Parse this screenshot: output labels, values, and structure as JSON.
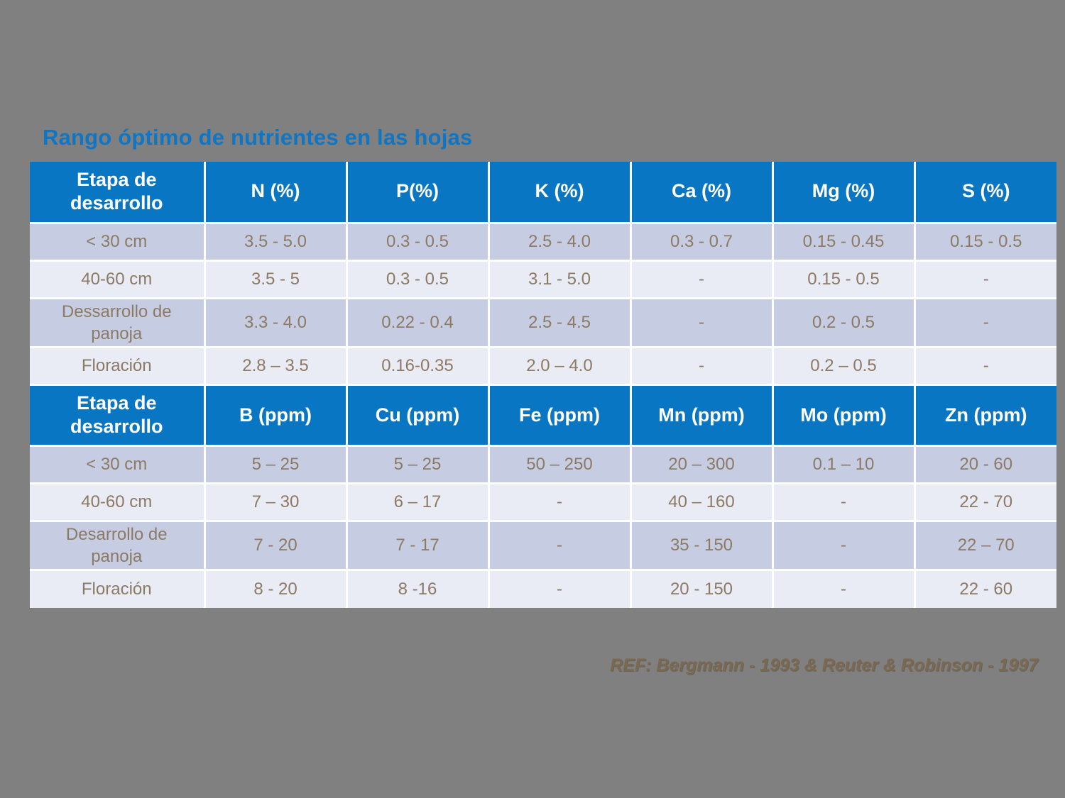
{
  "page": {
    "title": "Rango óptimo de nutrientes en las hojas",
    "reference": "REF:  Bergmann - 1993 & Reuter & Robinson - 1997",
    "colors": {
      "background": "#808080",
      "header_blue": "#0876C2",
      "row_dark": "#C6CDE2",
      "row_light": "#E9EBF5",
      "cell_text": "#8C7A64",
      "title_blue": "#0E76C4",
      "reference_text": "#7A6850"
    }
  },
  "tables": [
    {
      "name": "macronutrients-percent",
      "header": [
        "Etapa de\ndesarrollo",
        "N (%)",
        "P(%)",
        "K (%)",
        "Ca (%)",
        "Mg (%)",
        "S (%)"
      ],
      "rows": [
        {
          "label": "< 30 cm",
          "values": [
            "3.5 - 5.0",
            "0.3 - 0.5",
            "2.5 - 4.0",
            "0.3 - 0.7",
            "0.15 - 0.45",
            "0.15 - 0.5"
          ]
        },
        {
          "label": "40-60 cm",
          "values": [
            "3.5 - 5",
            "0.3 - 0.5",
            "3.1 - 5.0",
            "-",
            "0.15 - 0.5",
            "-"
          ]
        },
        {
          "label": "Dessarrollo de\npanoja",
          "values": [
            "3.3 - 4.0",
            "0.22 - 0.4",
            "2.5 - 4.5",
            "-",
            "0.2 - 0.5",
            "-"
          ]
        },
        {
          "label": "Floración",
          "values": [
            "2.8 – 3.5",
            "0.16-0.35",
            "2.0 – 4.0",
            "-",
            "0.2 – 0.5",
            "-"
          ]
        }
      ]
    },
    {
      "name": "micronutrients-ppm",
      "header": [
        "Etapa de\ndesarrollo",
        "B (ppm)",
        "Cu (ppm)",
        "Fe (ppm)",
        "Mn (ppm)",
        "Mo (ppm)",
        "Zn (ppm)"
      ],
      "rows": [
        {
          "label": "< 30 cm",
          "values": [
            "5 – 25",
            "5 – 25",
            "50 – 250",
            "20 – 300",
            "0.1 – 10",
            "20 - 60"
          ]
        },
        {
          "label": "40-60 cm",
          "values": [
            "7 – 30",
            "6 – 17",
            "-",
            "40 – 160",
            "-",
            "22 - 70"
          ]
        },
        {
          "label": "Desarrollo de\npanoja",
          "values": [
            "7 - 20",
            "7 - 17",
            "-",
            "35 - 150",
            "-",
            "22 – 70"
          ]
        },
        {
          "label": "Floración",
          "values": [
            "8 - 20",
            "8 -16",
            "-",
            "20 - 150",
            "-",
            "22 - 60"
          ]
        }
      ]
    }
  ]
}
